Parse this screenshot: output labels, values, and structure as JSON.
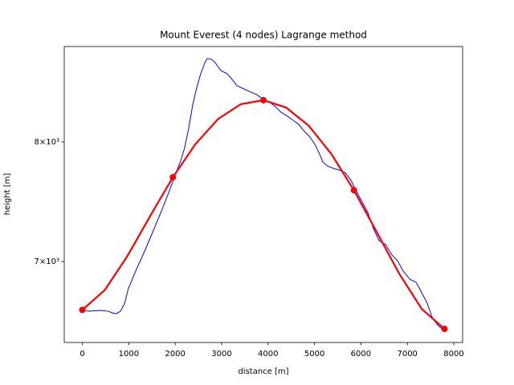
{
  "chart_data": {
    "type": "line",
    "title": "Mount Everest (4 nodes) Lagrange method",
    "xlabel": "distance [m]",
    "ylabel": "height [m]",
    "xlim": [
      -390,
      8190
    ],
    "ylim": [
      6395,
      8900
    ],
    "yscale": "log",
    "xticks": [
      0,
      1000,
      2000,
      3000,
      4000,
      5000,
      6000,
      7000,
      8000
    ],
    "yticks": [
      {
        "value": 7000,
        "label": "7×10³"
      },
      {
        "value": 8000,
        "label": "8×10³"
      }
    ],
    "series": [
      {
        "color": "#0000ff",
        "width": 1,
        "marker": false,
        "x": [
          8,
          130,
          390,
          560,
          650,
          730,
          820,
          910,
          990,
          1170,
          1340,
          1510,
          1690,
          1860,
          2000,
          2120,
          2200,
          2290,
          2380,
          2460,
          2550,
          2640,
          2690,
          2780,
          2860,
          2980,
          3120,
          3240,
          3330,
          3450,
          3590,
          3760,
          3900,
          4020,
          4140,
          4280,
          4420,
          4540,
          4660,
          4770,
          4890,
          5010,
          5110,
          5180,
          5280,
          5410,
          5530,
          5660,
          5790,
          5870,
          6010,
          6150,
          6270,
          6390,
          6530,
          6670,
          6790,
          6910,
          7050,
          7190,
          7310,
          7430,
          7530,
          7650,
          7770
        ],
        "values": [
          6628,
          6622,
          6628,
          6622,
          6610,
          6604,
          6622,
          6680,
          6791,
          6944,
          7081,
          7230,
          7393,
          7561,
          7711,
          7837,
          7943,
          8123,
          8344,
          8495,
          8634,
          8742,
          8782,
          8774,
          8742,
          8664,
          8634,
          8572,
          8518,
          8495,
          8465,
          8434,
          8389,
          8366,
          8329,
          8270,
          8233,
          8196,
          8159,
          8101,
          8050,
          7978,
          7893,
          7823,
          7788,
          7767,
          7753,
          7732,
          7663,
          7595,
          7494,
          7393,
          7263,
          7166,
          7134,
          7051,
          7006,
          6926,
          6864,
          6839,
          6760,
          6680,
          6581,
          6522,
          6486
        ]
      },
      {
        "color": "#ff0000",
        "width": 2.2,
        "marker": false,
        "x": [
          0,
          487.5,
          975,
          1462.5,
          1950,
          2437.5,
          2925,
          3412.5,
          3900,
          4387.5,
          4875,
          5362.5,
          5850,
          6337.5,
          6825,
          7312.5,
          7800
        ],
        "values": [
          6632,
          6782,
          7046,
          7366,
          7691,
          7982,
          8208,
          8345,
          8382,
          8314,
          8147,
          7894,
          7580,
          7237,
          6906,
          6638,
          6493
        ]
      },
      {
        "color": "#ff0000",
        "width": 0,
        "marker": true,
        "x": [
          0,
          1950,
          3900,
          5850,
          7800
        ],
        "values": [
          6632,
          7691,
          8382,
          7580,
          6493
        ]
      }
    ]
  }
}
